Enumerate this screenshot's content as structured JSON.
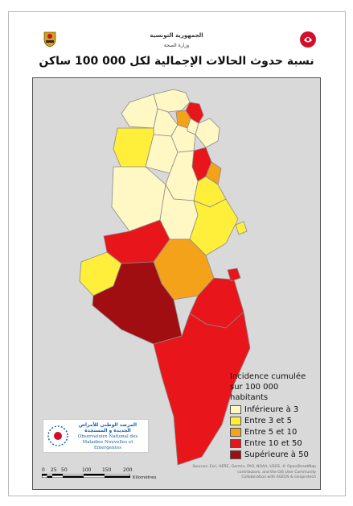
{
  "header": {
    "republic": "الجمهورية التونسية",
    "ministry": "وزارة الصحة",
    "title": "نسبة حدوث الحالات الإجمالية لكل 000 100 ساكن"
  },
  "colors": {
    "sea": "#d9d9d9",
    "border": "#8a8a8a",
    "inferieure_3": "#fff8c4",
    "entre_3_5": "#ffee3a",
    "entre_5_10": "#f5a21b",
    "entre_10_50": "#e8161a",
    "superieure_50": "#a10e12"
  },
  "legend": {
    "title_line1": "Incidence cumulée",
    "title_line2": "sur 100 000 habitants",
    "items": [
      {
        "label": "Inférieure à 3",
        "color": "#fff8c4"
      },
      {
        "label": "Entre 3 et 5",
        "color": "#ffee3a"
      },
      {
        "label": "Entre 5 et 10",
        "color": "#f5a21b"
      },
      {
        "label": "Entre 10 et 50",
        "color": "#e8161a"
      },
      {
        "label": "Supérieure à 50",
        "color": "#a10e12"
      }
    ]
  },
  "logo": {
    "arabic": "المرصد الوطني للأمراض الجديدة و المستجدة",
    "french_line1": "Observatoire National des",
    "french_line2": "Maladies Nouvelles et Emergentes"
  },
  "scale": {
    "ticks": [
      "0",
      "25",
      "50",
      "100",
      "150",
      "200"
    ],
    "unit": "Kilomètres"
  },
  "credits": {
    "line1": "Sources: Esri, HERE, Garmin, FAO, NOAA, USGS, © OpenStreetMap",
    "line2": "contributors, and the GIS User Community",
    "line3": "Collaboration with AGEOS & Geopretech"
  }
}
